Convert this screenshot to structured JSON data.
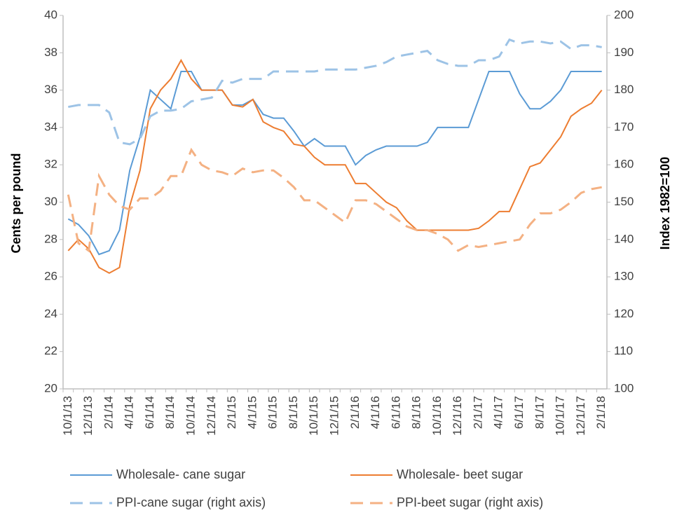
{
  "chart_data": {
    "type": "line",
    "y_label": "Cents per pound",
    "y2_label": "Index 1982=100",
    "categories": [
      "10/1/13",
      null,
      "12/1/13",
      null,
      "2/1/14",
      null,
      "4/1/14",
      null,
      "6/1/14",
      null,
      "8/1/14",
      null,
      "10/1/14",
      null,
      "12/1/14",
      null,
      "2/1/15",
      null,
      "4/1/15",
      null,
      "6/1/15",
      null,
      "8/1/15",
      null,
      "10/1/15",
      null,
      "12/1/15",
      null,
      "2/1/16",
      null,
      "4/1/16",
      null,
      "6/1/16",
      null,
      "8/1/16",
      null,
      "10/1/16",
      null,
      "12/1/16",
      null,
      "2/1/17",
      null,
      "4/1/17",
      null,
      "6/1/17",
      null,
      "8/1/17",
      null,
      "10/1/17",
      null,
      "12/1/17",
      null,
      "2/1/18"
    ],
    "series": [
      {
        "name": "Wholesale- cane sugar",
        "color": "#5b9bd5",
        "style": "solid",
        "values": [
          29.1,
          28.8,
          28.2,
          27.2,
          27.4,
          28.5,
          31.7,
          33.5,
          36.0,
          35.5,
          35.0,
          37.0,
          37.0,
          36.0,
          36.0,
          36.0,
          35.2,
          35.2,
          35.5,
          34.7,
          34.5,
          34.5,
          33.8,
          33.0,
          33.4,
          33.0,
          33.0,
          33.0,
          32.0,
          32.5,
          32.8,
          33.0,
          33.0,
          33.0,
          33.0,
          33.2,
          34.0,
          34.0,
          34.0,
          34.0,
          35.5,
          37.0,
          37.0,
          37.0,
          35.8,
          35.0,
          35.0,
          35.4,
          36.0,
          37.0,
          37.0,
          37.0,
          37.0
        ]
      },
      {
        "name": "Wholesale- beet sugar",
        "color": "#ed7d31",
        "style": "solid",
        "values": [
          27.4,
          28.0,
          27.5,
          26.5,
          26.2,
          26.5,
          29.8,
          31.7,
          35.0,
          36.0,
          36.6,
          37.6,
          36.6,
          36.0,
          36.0,
          36.0,
          35.2,
          35.1,
          35.5,
          34.3,
          34.0,
          33.8,
          33.1,
          33.0,
          32.4,
          32.0,
          32.0,
          32.0,
          31.0,
          31.0,
          30.5,
          30.0,
          29.7,
          29.0,
          28.5,
          28.5,
          28.5,
          28.5,
          28.5,
          28.5,
          28.6,
          29.0,
          29.5,
          29.5,
          30.7,
          31.9,
          32.1,
          32.8,
          33.5,
          34.6,
          35.0,
          35.3,
          36.0
        ]
      },
      {
        "name": "PPI-cane sugar (right axis)",
        "color": "#9dc3e6",
        "style": "dashed",
        "axis": "y2",
        "values": [
          175.5,
          176,
          176,
          176,
          174,
          166,
          165.5,
          167,
          173,
          174.5,
          174.5,
          175,
          177,
          177.5,
          178,
          182.5,
          182,
          183,
          183,
          183,
          185,
          185,
          185,
          185,
          185,
          185.5,
          185.5,
          185.5,
          185.5,
          186,
          186.5,
          187.5,
          189,
          189.5,
          190,
          190.5,
          188,
          187,
          186.5,
          186.5,
          188,
          188,
          189,
          193.5,
          192.5,
          193,
          193,
          192.5,
          193,
          191,
          192,
          192,
          191.5
        ]
      },
      {
        "name": "PPI-beet sugar (right axis)",
        "color": "#f4b183",
        "style": "dashed",
        "axis": "y2",
        "values": [
          152,
          139,
          137,
          157,
          152,
          149,
          148,
          151,
          151,
          153,
          157,
          157,
          164,
          160,
          158.5,
          158,
          157,
          159,
          158,
          158.5,
          158.5,
          156.5,
          154,
          150.5,
          150.5,
          148.5,
          146.5,
          144.5,
          150.5,
          150.5,
          149.5,
          147.5,
          145.5,
          143.5,
          142.5,
          142.5,
          141.5,
          140,
          137,
          138.5,
          138,
          138.5,
          139,
          139.5,
          140,
          144,
          147,
          147,
          148,
          150,
          152.5,
          153.5,
          154
        ]
      }
    ],
    "ylim": [
      20,
      40
    ],
    "yticks": [
      20,
      22,
      24,
      26,
      28,
      30,
      32,
      34,
      36,
      38,
      40
    ],
    "y2lim": [
      100,
      200
    ],
    "y2ticks": [
      100,
      110,
      120,
      130,
      140,
      150,
      160,
      170,
      180,
      190,
      200
    ],
    "grid": false,
    "legend": "bottom"
  }
}
